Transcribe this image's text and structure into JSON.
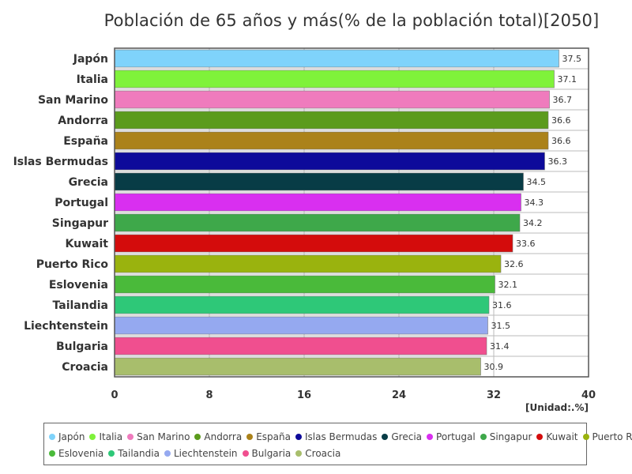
{
  "chart_data": {
    "type": "bar",
    "orientation": "horizontal",
    "title": "Población de 65 años y más(% de la población total)[2050]",
    "unit_label": "[Unidad:.%]",
    "xlim": [
      0,
      40
    ],
    "xticks": [
      0,
      8,
      16,
      24,
      32,
      40
    ],
    "grid": true,
    "legend_position": "bottom",
    "categories": [
      "Japón",
      "Italia",
      "San Marino",
      "Andorra",
      "España",
      "Islas Bermudas",
      "Grecia",
      "Portugal",
      "Singapur",
      "Kuwait",
      "Puerto Rico",
      "Eslovenia",
      "Tailandia",
      "Liechtenstein",
      "Bulgaria",
      "Croacia"
    ],
    "values": [
      37.5,
      37.1,
      36.7,
      36.6,
      36.6,
      36.3,
      34.5,
      34.3,
      34.2,
      33.6,
      32.6,
      32.1,
      31.6,
      31.5,
      31.4,
      30.9
    ],
    "value_labels": [
      "37.5",
      "37.1",
      "36.7",
      "36.6",
      "36.6",
      "36.3",
      "34.5",
      "34.3",
      "34.2",
      "33.6",
      "32.6",
      "32.1",
      "31.6",
      "31.5",
      "31.4",
      "30.9"
    ],
    "colors": [
      "#7fd3fb",
      "#7ff23a",
      "#ef7bbd",
      "#5b9b1c",
      "#ab821a",
      "#0d0a9a",
      "#083c46",
      "#d92ff0",
      "#3ea84a",
      "#d40c0c",
      "#9ab30e",
      "#4aba3a",
      "#2ec878",
      "#95a9f0",
      "#f04f8f",
      "#a8be6c"
    ]
  }
}
